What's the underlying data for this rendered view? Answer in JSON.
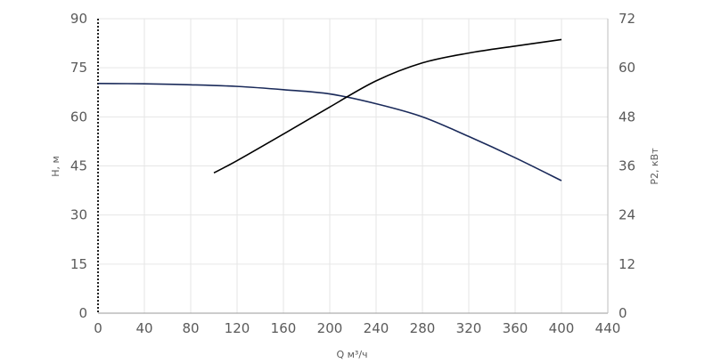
{
  "chart_data": {
    "type": "line",
    "title": "",
    "xlabel": "Q м³/ч",
    "ylabel_left": "H, м",
    "ylabel_right": "P2, кВт",
    "xlim": [
      0,
      440
    ],
    "ylim_left": [
      0,
      90
    ],
    "ylim_right": [
      0,
      72
    ],
    "x_ticks": [
      "0",
      "40",
      "80",
      "120",
      "160",
      "200",
      "240",
      "280",
      "320",
      "360",
      "400",
      "440"
    ],
    "y_left_ticks": [
      "0",
      "15",
      "30",
      "45",
      "60",
      "75",
      "90"
    ],
    "y_right_ticks": [
      "0",
      "12",
      "24",
      "36",
      "48",
      "60",
      "72"
    ],
    "grid": true,
    "series": [
      {
        "axis": "left",
        "color": "#1a2a5a",
        "x": [
          0,
          40,
          80,
          120,
          160,
          200,
          240,
          280,
          320,
          360,
          400
        ],
        "y": [
          70.2,
          70.1,
          69.8,
          69.3,
          68.3,
          67.0,
          64.0,
          60.0,
          54.0,
          47.5,
          40.5
        ]
      },
      {
        "axis": "right",
        "color": "#000000",
        "x": [
          100,
          120,
          160,
          200,
          240,
          280,
          320,
          360,
          400
        ],
        "y": [
          34.3,
          37.3,
          43.8,
          50.4,
          56.8,
          61.2,
          63.6,
          65.3,
          66.9
        ]
      }
    ]
  }
}
